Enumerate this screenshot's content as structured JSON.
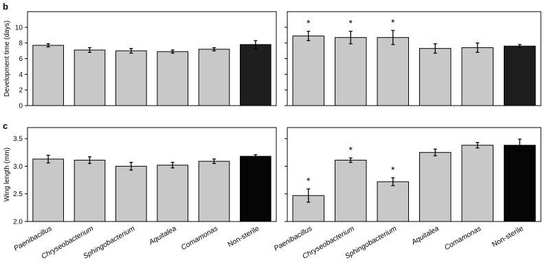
{
  "figure": {
    "bars_color": "#c8c8c8",
    "control_color_b": "#1e1e1e",
    "control_color_c": "#050505"
  },
  "chart_data": [
    {
      "panel": "b",
      "side": "left",
      "type": "bar",
      "ylabel": "Development time (days)",
      "ylim": [
        0,
        12
      ],
      "yticks": [
        0,
        2,
        4,
        6,
        8,
        10
      ],
      "categories": [
        "Paenibacillus",
        "Chryseobacterium",
        "Sphingobacterium",
        "Aquitalea",
        "Comamonas",
        "Non-sterile"
      ],
      "values": [
        7.7,
        7.1,
        7.0,
        6.9,
        7.2,
        7.8
      ],
      "errors": [
        0.2,
        0.3,
        0.3,
        0.2,
        0.2,
        0.5
      ],
      "significant": [
        false,
        false,
        false,
        false,
        false,
        false
      ]
    },
    {
      "panel": "b",
      "side": "right",
      "type": "bar",
      "ylabel": "",
      "ylim": [
        0,
        12
      ],
      "yticks": [
        0,
        2,
        4,
        6,
        8,
        10
      ],
      "categories": [
        "Paenibacillus",
        "Chryseobacterium",
        "Sphingobacterium",
        "Aquitalea",
        "Comamonas",
        "Non-sterile"
      ],
      "values": [
        8.9,
        8.7,
        8.7,
        7.3,
        7.4,
        7.6
      ],
      "errors": [
        0.6,
        0.8,
        0.9,
        0.6,
        0.6,
        0.2
      ],
      "significant": [
        true,
        true,
        true,
        false,
        false,
        false
      ],
      "sig_marker": "*"
    },
    {
      "panel": "c",
      "side": "left",
      "type": "bar",
      "ylabel": "Wing length (mm)",
      "ylim": [
        2.0,
        3.7
      ],
      "yticks": [
        2.0,
        2.5,
        3.0,
        3.5
      ],
      "ytick_labels": [
        "2.0",
        "2.5",
        "3.0",
        "3.5"
      ],
      "categories": [
        "Paenibacillus",
        "Chryseobacterium",
        "Sphingobacterium",
        "Aquitalea",
        "Comamonas",
        "Non-sterile"
      ],
      "values": [
        3.13,
        3.11,
        3.0,
        3.02,
        3.09,
        3.18
      ],
      "errors": [
        0.07,
        0.06,
        0.07,
        0.05,
        0.04,
        0.03
      ],
      "significant": [
        false,
        false,
        false,
        false,
        false,
        false
      ]
    },
    {
      "panel": "c",
      "side": "right",
      "type": "bar",
      "ylabel": "",
      "ylim": [
        2.0,
        3.7
      ],
      "yticks": [
        2.0,
        2.5,
        3.0,
        3.5
      ],
      "categories": [
        "Paenibacillus",
        "Chryseobacterium",
        "Sphingobacterium",
        "Aquitalea",
        "Comamonas",
        "Non-sterile"
      ],
      "values": [
        2.47,
        3.11,
        2.72,
        3.25,
        3.38,
        3.38
      ],
      "errors": [
        0.12,
        0.04,
        0.07,
        0.06,
        0.05,
        0.11
      ],
      "significant": [
        true,
        true,
        true,
        false,
        false,
        false
      ],
      "sig_marker": "*"
    }
  ],
  "panel_labels": {
    "b": "b",
    "c": "c"
  }
}
